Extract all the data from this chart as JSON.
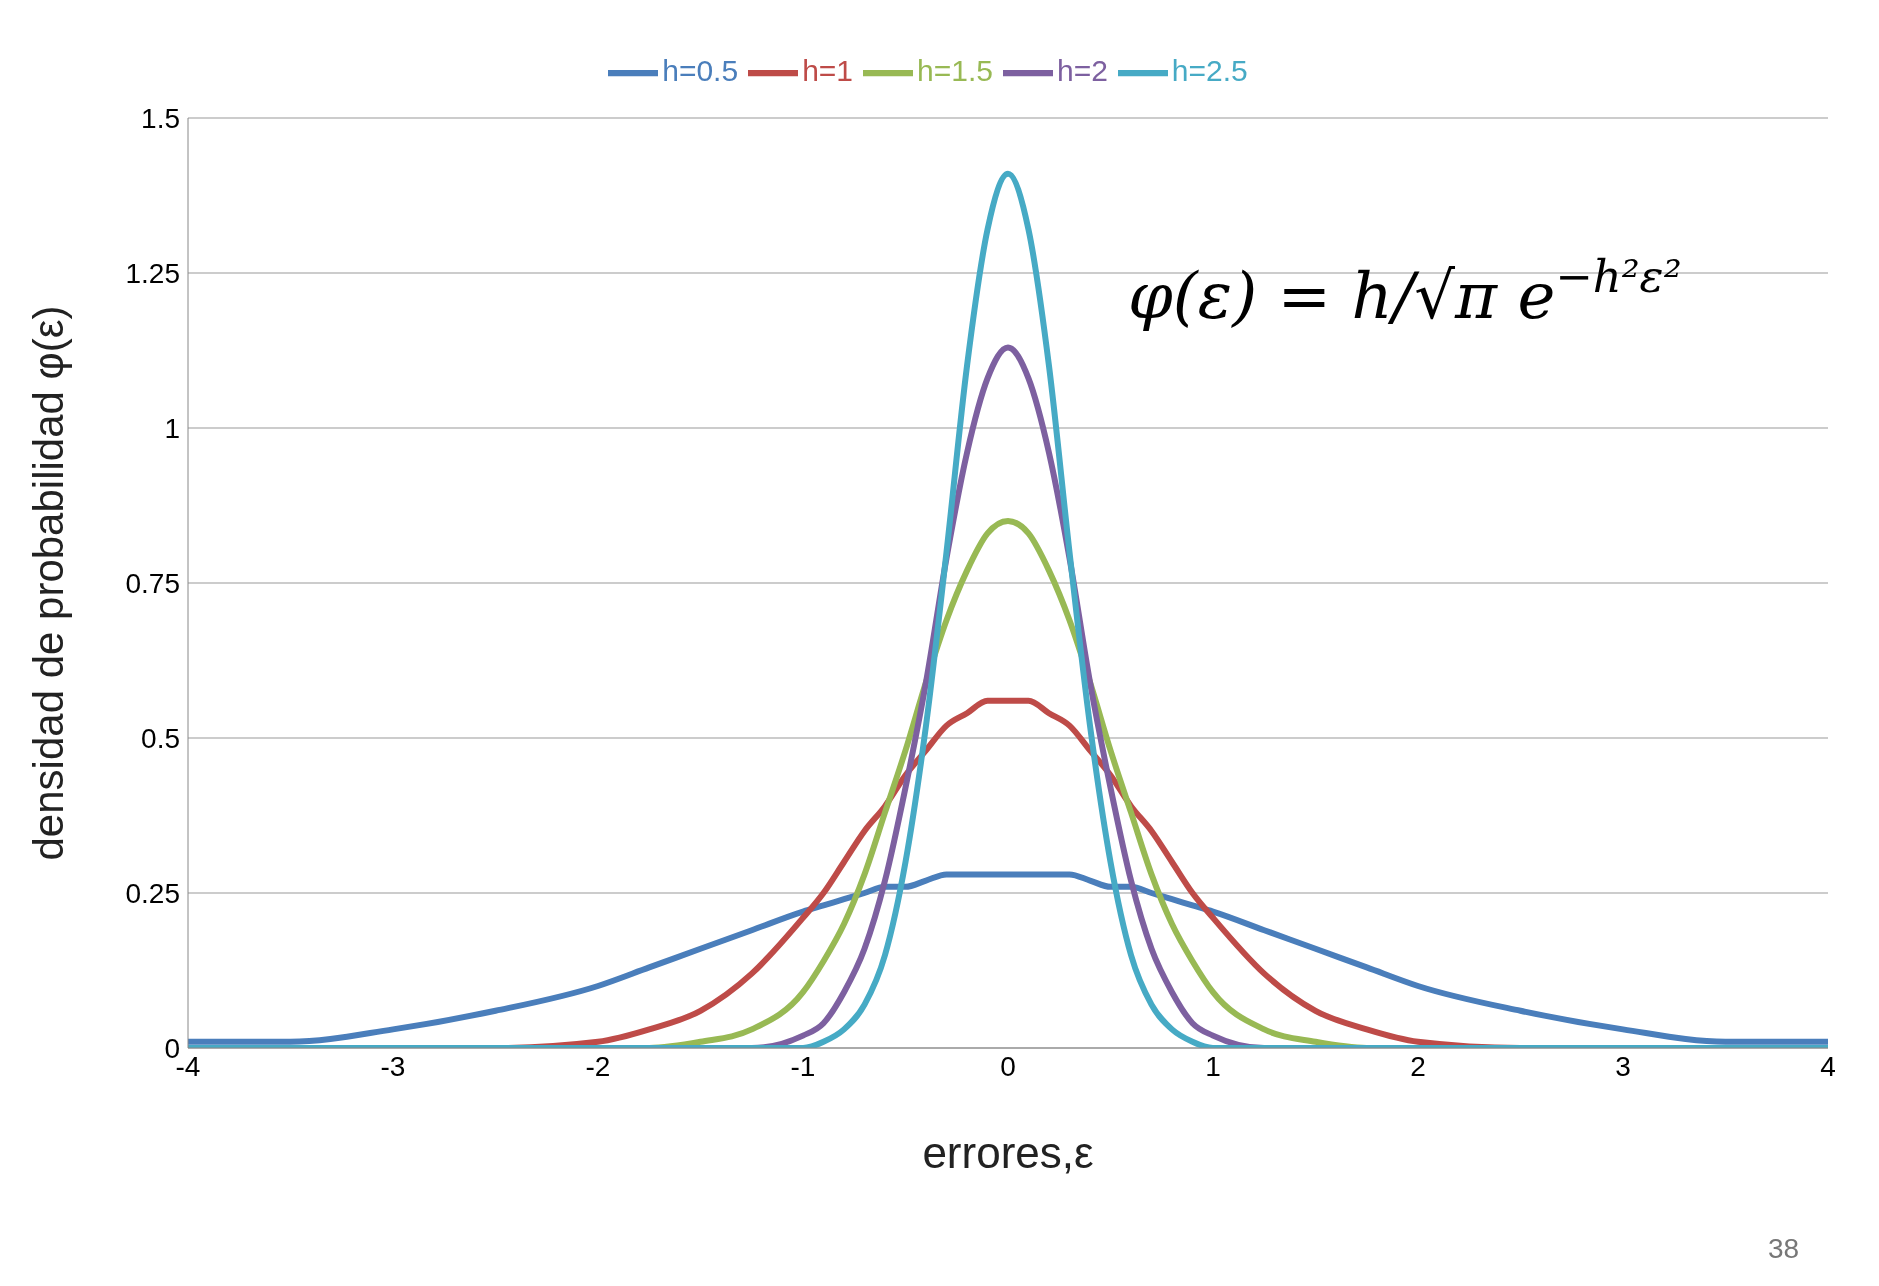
{
  "chart_data": {
    "type": "line",
    "xlabel": "errores,ε",
    "ylabel": "densidad de probabilidad φ(ε)",
    "x": [
      -4,
      -3.5,
      -3,
      -2.5,
      -2,
      -1.75,
      -1.5,
      -1.25,
      -1,
      -0.9,
      -0.8,
      -0.7,
      -0.6,
      -0.5,
      -0.4,
      -0.3,
      -0.2,
      -0.1,
      0,
      0.1,
      0.2,
      0.3,
      0.4,
      0.5,
      0.6,
      0.7,
      0.8,
      0.9,
      1,
      1.25,
      1.5,
      1.75,
      2,
      2.5,
      3,
      3.5,
      4
    ],
    "series": [
      {
        "name": "h=0.5",
        "color": "#4a7ebb",
        "values": [
          0.01,
          0.01,
          0.03,
          0.06,
          0.1,
          0.13,
          0.16,
          0.19,
          0.22,
          0.23,
          0.24,
          0.25,
          0.26,
          0.26,
          0.27,
          0.28,
          0.28,
          0.28,
          0.28,
          0.28,
          0.28,
          0.28,
          0.27,
          0.26,
          0.26,
          0.25,
          0.24,
          0.23,
          0.22,
          0.19,
          0.16,
          0.13,
          0.1,
          0.06,
          0.03,
          0.01,
          0.01
        ]
      },
      {
        "name": "h=1",
        "color": "#be4b48",
        "values": [
          null,
          null,
          0,
          0,
          0.01,
          0.03,
          0.06,
          0.12,
          0.21,
          0.25,
          0.3,
          0.35,
          0.39,
          0.44,
          0.48,
          0.52,
          0.54,
          0.56,
          0.56,
          0.56,
          0.54,
          0.52,
          0.48,
          0.44,
          0.39,
          0.35,
          0.3,
          0.25,
          0.21,
          0.12,
          0.06,
          0.03,
          0.01,
          0,
          0,
          null,
          null
        ]
      },
      {
        "name": "h=1.5",
        "color": "#98b954",
        "values": [
          null,
          null,
          null,
          null,
          0,
          0,
          0.01,
          0.03,
          0.09,
          0.14,
          0.2,
          0.28,
          0.38,
          0.48,
          0.59,
          0.69,
          0.77,
          0.83,
          0.85,
          0.83,
          0.77,
          0.69,
          0.59,
          0.48,
          0.38,
          0.28,
          0.2,
          0.14,
          0.09,
          0.03,
          0.01,
          0,
          0,
          null,
          null,
          null,
          null
        ]
      },
      {
        "name": "h=2",
        "color": "#7d60a0",
        "values": [
          0,
          0,
          0,
          0,
          0,
          0,
          0,
          0,
          0.02,
          0.04,
          0.09,
          0.16,
          0.27,
          0.42,
          0.59,
          0.79,
          0.96,
          1.08,
          1.13,
          1.08,
          0.96,
          0.79,
          0.59,
          0.42,
          0.27,
          0.16,
          0.09,
          0.04,
          0.02,
          0,
          0,
          0,
          0,
          0,
          0,
          0,
          0
        ]
      },
      {
        "name": "h=2.5",
        "color": "#46aac5",
        "values": [
          0,
          0,
          0,
          0,
          0,
          0,
          0,
          0,
          0,
          0.01,
          0.03,
          0.07,
          0.15,
          0.3,
          0.52,
          0.8,
          1.1,
          1.32,
          1.41,
          1.32,
          1.1,
          0.8,
          0.52,
          0.3,
          0.15,
          0.07,
          0.03,
          0.01,
          0,
          0,
          0,
          0,
          0,
          0,
          0,
          0,
          0
        ]
      }
    ],
    "xlim": [
      -4,
      4
    ],
    "xticks": [
      -4,
      -3,
      -2,
      -1,
      0,
      1,
      2,
      3,
      4
    ],
    "ylim": [
      0,
      1.5
    ],
    "yticks": [
      0,
      0.25,
      0.5,
      0.75,
      1,
      1.25,
      1.5
    ],
    "grid": "y",
    "legend": "top",
    "marker": "none",
    "line_style": "solid",
    "annotations": [
      "φ(ε) = h/√π e$^{−h²ε²}$",
      "38"
    ]
  }
}
